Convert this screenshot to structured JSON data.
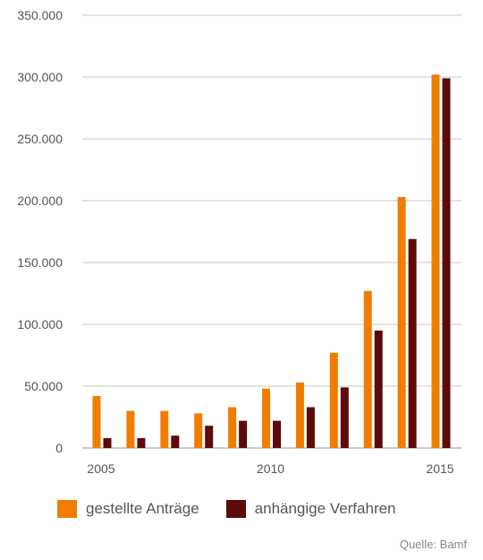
{
  "chart_data": {
    "type": "bar",
    "x": [
      2005,
      2006,
      2007,
      2008,
      2009,
      2010,
      2011,
      2012,
      2013,
      2014,
      2015
    ],
    "x_tick_labels": [
      "2005",
      "2010",
      "2015"
    ],
    "y_tick_labels": [
      "0",
      "50.000",
      "100.000",
      "150.000",
      "200.000",
      "250.000",
      "300.000",
      "350.000"
    ],
    "ylim": [
      0,
      350000
    ],
    "grid": true,
    "legend_position": "bottom-left",
    "series": [
      {
        "name": "gestellte Anträge",
        "color": "#f07d00",
        "values": [
          42000,
          30000,
          30000,
          28000,
          33000,
          48000,
          53000,
          77000,
          127000,
          203000,
          302000
        ]
      },
      {
        "name": "anhängige Verfahren",
        "color": "#5c0a0a",
        "values": [
          8000,
          8000,
          10000,
          18000,
          22000,
          22000,
          33000,
          49000,
          95000,
          169000,
          299000
        ]
      }
    ],
    "source": "Quelle: Bamf"
  }
}
